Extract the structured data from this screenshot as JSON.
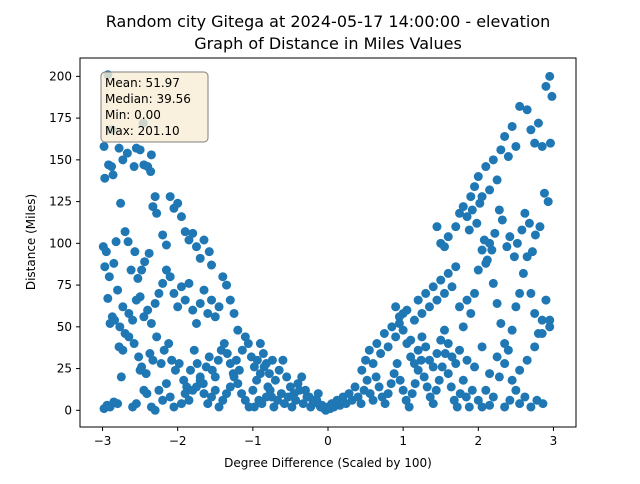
{
  "chart_data": {
    "type": "scatter",
    "title_line1": "Random city Gitega at 2024-05-17 14:00:00  - elevation",
    "title_line2": "Graph of Distance in Miles Values",
    "xlabel": "Degree Difference (Scaled by 100)",
    "ylabel": "Distance (Miles)",
    "xlim": [
      -3.3,
      3.3
    ],
    "ylim": [
      -10,
      211
    ],
    "x_ticks": [
      -3,
      -2,
      -1,
      0,
      1,
      2,
      3
    ],
    "x_tick_labels": [
      "−3",
      "−2",
      "−1",
      "0",
      "1",
      "2",
      "3"
    ],
    "y_ticks": [
      0,
      25,
      50,
      75,
      100,
      125,
      150,
      175,
      200
    ],
    "y_tick_labels": [
      "0",
      "25",
      "50",
      "75",
      "100",
      "125",
      "150",
      "175",
      "200"
    ],
    "grid": false,
    "point_color": "#1f77b4",
    "stats_box": {
      "mean": "Mean: 51.97",
      "median": "Median: 39.56",
      "min": "Min: 0.00",
      "max": "Max: 201.10",
      "background": "#f8ecd4",
      "border": "#7f7f7f"
    },
    "points": [
      [
        -2.93,
        201
      ],
      [
        -2.98,
        158
      ],
      [
        -2.97,
        139
      ],
      [
        -2.92,
        147
      ],
      [
        -2.88,
        146
      ],
      [
        -2.86,
        141
      ],
      [
        -2.78,
        157
      ],
      [
        -2.73,
        150
      ],
      [
        -2.67,
        154
      ],
      [
        -2.58,
        146
      ],
      [
        -2.55,
        157
      ],
      [
        -2.5,
        156
      ],
      [
        -2.45,
        147
      ],
      [
        -2.4,
        146
      ],
      [
        -2.35,
        153
      ],
      [
        -2.36,
        143
      ],
      [
        -2.46,
        172
      ],
      [
        -2.88,
        168
      ],
      [
        -2.99,
        98
      ],
      [
        -2.95,
        95
      ],
      [
        -2.91,
        80
      ],
      [
        -2.85,
        88
      ],
      [
        -2.82,
        101
      ],
      [
        -2.76,
        124
      ],
      [
        -2.7,
        107
      ],
      [
        -2.66,
        101
      ],
      [
        -2.62,
        84
      ],
      [
        -2.57,
        95
      ],
      [
        -2.53,
        79
      ],
      [
        -2.48,
        84
      ],
      [
        -2.44,
        89
      ],
      [
        -2.38,
        94
      ],
      [
        -2.33,
        122
      ],
      [
        -2.3,
        128
      ],
      [
        -2.28,
        118
      ],
      [
        -2.2,
        105
      ],
      [
        -2.15,
        99
      ],
      [
        -2.1,
        128
      ],
      [
        -2.05,
        121
      ],
      [
        -2.0,
        124
      ],
      [
        -1.95,
        116
      ],
      [
        -1.9,
        107
      ],
      [
        -1.85,
        102
      ],
      [
        -1.8,
        106
      ],
      [
        -1.75,
        98
      ],
      [
        -1.7,
        91
      ],
      [
        -1.65,
        102
      ],
      [
        -1.58,
        95
      ],
      [
        -1.55,
        87
      ],
      [
        -2.97,
        86
      ],
      [
        -2.93,
        67
      ],
      [
        -2.9,
        52
      ],
      [
        -2.87,
        56
      ],
      [
        -2.84,
        54
      ],
      [
        -2.8,
        72
      ],
      [
        -2.77,
        50
      ],
      [
        -2.73,
        62
      ],
      [
        -2.7,
        46
      ],
      [
        -2.65,
        58
      ],
      [
        -2.6,
        54
      ],
      [
        -2.55,
        66
      ],
      [
        -2.5,
        68
      ],
      [
        -2.45,
        56
      ],
      [
        -2.4,
        60
      ],
      [
        -2.35,
        52
      ],
      [
        -2.3,
        64
      ],
      [
        -2.25,
        70
      ],
      [
        -2.2,
        76
      ],
      [
        -2.15,
        84
      ],
      [
        -2.1,
        80
      ],
      [
        -2.05,
        70
      ],
      [
        -2.0,
        62
      ],
      [
        -1.95,
        74
      ],
      [
        -1.9,
        66
      ],
      [
        -1.85,
        76
      ],
      [
        -1.8,
        60
      ],
      [
        -1.75,
        52
      ],
      [
        -1.7,
        64
      ],
      [
        -1.65,
        72
      ],
      [
        -1.6,
        58
      ],
      [
        -1.55,
        66
      ],
      [
        -1.5,
        56
      ],
      [
        -1.45,
        62
      ],
      [
        -1.4,
        80
      ],
      [
        -1.35,
        75
      ],
      [
        -1.3,
        66
      ],
      [
        -1.25,
        58
      ],
      [
        -1.2,
        48
      ],
      [
        -2.78,
        38
      ],
      [
        -2.73,
        36
      ],
      [
        -2.65,
        44
      ],
      [
        -2.58,
        40
      ],
      [
        -2.52,
        32
      ],
      [
        -2.48,
        26
      ],
      [
        -2.42,
        22
      ],
      [
        -2.37,
        34
      ],
      [
        -2.33,
        30
      ],
      [
        -2.28,
        44
      ],
      [
        -2.22,
        28
      ],
      [
        -2.18,
        36
      ],
      [
        -2.12,
        40
      ],
      [
        -2.08,
        30
      ],
      [
        -2.03,
        24
      ],
      [
        -1.98,
        28
      ],
      [
        -1.92,
        18
      ],
      [
        -1.88,
        14
      ],
      [
        -1.83,
        24
      ],
      [
        -1.78,
        36
      ],
      [
        -1.74,
        28
      ],
      [
        -1.7,
        20
      ],
      [
        -1.66,
        16
      ],
      [
        -1.62,
        26
      ],
      [
        -1.58,
        32
      ],
      [
        -1.54,
        24
      ],
      [
        -1.5,
        20
      ],
      [
        -1.46,
        30
      ],
      [
        -1.42,
        36
      ],
      [
        -1.38,
        40
      ],
      [
        -1.34,
        34
      ],
      [
        -1.3,
        28
      ],
      [
        -1.26,
        22
      ],
      [
        -1.22,
        30
      ],
      [
        -1.18,
        24
      ],
      [
        -1.14,
        36
      ],
      [
        -1.1,
        44
      ],
      [
        -1.06,
        40
      ],
      [
        -1.02,
        32
      ],
      [
        -0.98,
        26
      ],
      [
        -0.94,
        30
      ],
      [
        -0.9,
        40
      ],
      [
        -0.86,
        34
      ],
      [
        -0.82,
        28
      ],
      [
        -0.78,
        22
      ],
      [
        -0.74,
        30
      ],
      [
        -2.98,
        1
      ],
      [
        -2.94,
        3
      ],
      [
        -2.9,
        2
      ],
      [
        -2.85,
        5
      ],
      [
        -2.8,
        4
      ],
      [
        -2.75,
        20
      ],
      [
        -2.6,
        2
      ],
      [
        -2.55,
        4
      ],
      [
        -2.5,
        24
      ],
      [
        -2.45,
        12
      ],
      [
        -2.41,
        10
      ],
      [
        -2.35,
        2
      ],
      [
        -2.3,
        0
      ],
      [
        -2.25,
        12
      ],
      [
        -2.2,
        6
      ],
      [
        -2.15,
        16
      ],
      [
        -2.1,
        8
      ],
      [
        -2.05,
        2
      ],
      [
        -1.95,
        4
      ],
      [
        -1.9,
        10
      ],
      [
        -1.85,
        6
      ],
      [
        -1.8,
        12
      ],
      [
        -1.75,
        14
      ],
      [
        -1.7,
        18
      ],
      [
        -1.65,
        10
      ],
      [
        -1.6,
        4
      ],
      [
        -1.55,
        8
      ],
      [
        -1.5,
        12
      ],
      [
        -1.45,
        2
      ],
      [
        -1.4,
        6
      ],
      [
        -1.35,
        10
      ],
      [
        -1.3,
        14
      ],
      [
        -1.25,
        20
      ],
      [
        -1.2,
        16
      ],
      [
        -1.15,
        10
      ],
      [
        -1.1,
        6
      ],
      [
        -1.05,
        2
      ],
      [
        -1.0,
        12
      ],
      [
        -0.95,
        18
      ],
      [
        -0.9,
        22
      ],
      [
        -0.85,
        26
      ],
      [
        -0.8,
        14
      ],
      [
        -0.75,
        8
      ],
      [
        -0.7,
        18
      ],
      [
        -0.65,
        24
      ],
      [
        -0.6,
        30
      ],
      [
        -0.55,
        20
      ],
      [
        -0.5,
        14
      ],
      [
        -0.45,
        10
      ],
      [
        -0.4,
        16
      ],
      [
        -0.35,
        20
      ],
      [
        -0.3,
        12
      ],
      [
        -0.25,
        8
      ],
      [
        -0.2,
        4
      ],
      [
        -0.15,
        6
      ],
      [
        -0.1,
        2
      ],
      [
        -0.05,
        1
      ],
      [
        -0.98,
        2
      ],
      [
        -0.92,
        6
      ],
      [
        -0.88,
        4
      ],
      [
        -0.82,
        8
      ],
      [
        -0.77,
        12
      ],
      [
        -0.72,
        2
      ],
      [
        -0.67,
        6
      ],
      [
        -0.62,
        10
      ],
      [
        -0.58,
        4
      ],
      [
        -0.53,
        8
      ],
      [
        -0.48,
        2
      ],
      [
        -0.43,
        6
      ],
      [
        -0.38,
        12
      ],
      [
        -0.33,
        4
      ],
      [
        -0.28,
        8
      ],
      [
        -0.23,
        2
      ],
      [
        -0.18,
        6
      ],
      [
        -0.13,
        10
      ],
      [
        -0.08,
        3
      ],
      [
        -0.03,
        0
      ],
      [
        0.0,
        2
      ],
      [
        0.03,
        1
      ],
      [
        0.05,
        4
      ],
      [
        0.08,
        2
      ],
      [
        0.12,
        6
      ],
      [
        0.16,
        3
      ],
      [
        0.2,
        8
      ],
      [
        0.24,
        4
      ],
      [
        0.28,
        10
      ],
      [
        0.32,
        6
      ],
      [
        0.36,
        14
      ],
      [
        0.4,
        8
      ],
      [
        0.44,
        4
      ],
      [
        0.48,
        12
      ],
      [
        0.52,
        18
      ],
      [
        0.56,
        10
      ],
      [
        0.6,
        6
      ],
      [
        0.64,
        20
      ],
      [
        0.68,
        14
      ],
      [
        0.72,
        8
      ],
      [
        0.76,
        4
      ],
      [
        0.8,
        10
      ],
      [
        0.84,
        16
      ],
      [
        0.88,
        22
      ],
      [
        0.92,
        28
      ],
      [
        0.96,
        18
      ],
      [
        1.0,
        12
      ],
      [
        1.04,
        6
      ],
      [
        1.08,
        2
      ],
      [
        1.12,
        10
      ],
      [
        1.16,
        16
      ],
      [
        1.2,
        24
      ],
      [
        1.24,
        30
      ],
      [
        1.28,
        20
      ],
      [
        1.32,
        14
      ],
      [
        1.36,
        8
      ],
      [
        1.4,
        4
      ],
      [
        1.44,
        12
      ],
      [
        1.48,
        18
      ],
      [
        1.52,
        26
      ],
      [
        1.56,
        34
      ],
      [
        1.6,
        22
      ],
      [
        1.64,
        14
      ],
      [
        1.68,
        6
      ],
      [
        1.72,
        2
      ],
      [
        1.76,
        10
      ],
      [
        1.8,
        18
      ],
      [
        1.84,
        8
      ],
      [
        1.88,
        2
      ],
      [
        1.92,
        12
      ],
      [
        2.0,
        6
      ],
      [
        2.05,
        2
      ],
      [
        2.1,
        12
      ],
      [
        2.15,
        3
      ],
      [
        2.2,
        8
      ],
      [
        2.28,
        20
      ],
      [
        2.35,
        2
      ],
      [
        2.42,
        6
      ],
      [
        2.5,
        12
      ],
      [
        2.55,
        4
      ],
      [
        2.62,
        8
      ],
      [
        2.7,
        2
      ],
      [
        2.78,
        6
      ],
      [
        2.86,
        4
      ],
      [
        0.45,
        24
      ],
      [
        0.5,
        30
      ],
      [
        0.55,
        36
      ],
      [
        0.6,
        28
      ],
      [
        0.65,
        40
      ],
      [
        0.7,
        34
      ],
      [
        0.75,
        46
      ],
      [
        0.8,
        38
      ],
      [
        0.85,
        50
      ],
      [
        0.9,
        44
      ],
      [
        0.95,
        56
      ],
      [
        1.0,
        48
      ],
      [
        1.05,
        60
      ],
      [
        1.1,
        42
      ],
      [
        1.15,
        54
      ],
      [
        1.2,
        66
      ],
      [
        1.25,
        58
      ],
      [
        1.3,
        70
      ],
      [
        1.35,
        62
      ],
      [
        1.4,
        74
      ],
      [
        1.45,
        66
      ],
      [
        1.5,
        78
      ],
      [
        1.55,
        70
      ],
      [
        1.6,
        82
      ],
      [
        1.65,
        74
      ],
      [
        1.7,
        86
      ],
      [
        1.75,
        62
      ],
      [
        1.8,
        50
      ],
      [
        1.85,
        66
      ],
      [
        1.9,
        58
      ],
      [
        1.95,
        70
      ],
      [
        2.0,
        84
      ],
      [
        2.05,
        96
      ],
      [
        2.1,
        88
      ],
      [
        2.15,
        100
      ],
      [
        2.2,
        76
      ],
      [
        2.25,
        64
      ],
      [
        2.3,
        52
      ],
      [
        2.35,
        40
      ],
      [
        2.4,
        36
      ],
      [
        2.45,
        48
      ],
      [
        2.5,
        62
      ],
      [
        2.55,
        70
      ],
      [
        2.6,
        82
      ],
      [
        2.65,
        92
      ],
      [
        2.7,
        70
      ],
      [
        2.75,
        58
      ],
      [
        2.8,
        46
      ],
      [
        2.85,
        54
      ],
      [
        2.9,
        66
      ],
      [
        2.95,
        50
      ],
      [
        0.9,
        62
      ],
      [
        0.95,
        52
      ],
      [
        1.0,
        58
      ],
      [
        1.05,
        40
      ],
      [
        1.1,
        32
      ],
      [
        1.15,
        28
      ],
      [
        1.2,
        36
      ],
      [
        1.25,
        44
      ],
      [
        1.3,
        38
      ],
      [
        1.35,
        30
      ],
      [
        1.4,
        26
      ],
      [
        1.45,
        34
      ],
      [
        1.5,
        42
      ],
      [
        1.55,
        48
      ],
      [
        1.6,
        40
      ],
      [
        1.65,
        32
      ],
      [
        1.7,
        28
      ],
      [
        1.75,
        36
      ],
      [
        1.85,
        30
      ],
      [
        1.95,
        26
      ],
      [
        2.05,
        38
      ],
      [
        2.15,
        22
      ],
      [
        2.25,
        32
      ],
      [
        2.35,
        28
      ],
      [
        2.45,
        18
      ],
      [
        2.55,
        24
      ],
      [
        2.65,
        30
      ],
      [
        2.75,
        38
      ],
      [
        2.85,
        46
      ],
      [
        2.95,
        54
      ],
      [
        1.45,
        110
      ],
      [
        1.5,
        100
      ],
      [
        1.55,
        98
      ],
      [
        1.6,
        104
      ],
      [
        1.7,
        110
      ],
      [
        1.75,
        118
      ],
      [
        1.8,
        122
      ],
      [
        1.85,
        116
      ],
      [
        1.9,
        128
      ],
      [
        1.95,
        134
      ],
      [
        2.0,
        140
      ],
      [
        2.05,
        128
      ],
      [
        2.1,
        146
      ],
      [
        2.15,
        132
      ],
      [
        2.2,
        150
      ],
      [
        2.25,
        138
      ],
      [
        2.3,
        156
      ],
      [
        2.35,
        164
      ],
      [
        2.4,
        152
      ],
      [
        2.45,
        170
      ],
      [
        2.5,
        158
      ],
      [
        2.55,
        182
      ],
      [
        2.65,
        180
      ],
      [
        2.7,
        168
      ],
      [
        2.75,
        160
      ],
      [
        2.8,
        172
      ],
      [
        2.85,
        158
      ],
      [
        2.9,
        194
      ],
      [
        2.95,
        200
      ],
      [
        2.98,
        188
      ],
      [
        2.96,
        160
      ],
      [
        2.93,
        125
      ],
      [
        2.88,
        130
      ],
      [
        2.82,
        110
      ],
      [
        2.76,
        105
      ],
      [
        2.72,
        95
      ],
      [
        2.68,
        112
      ],
      [
        2.62,
        118
      ],
      [
        2.58,
        108
      ],
      [
        2.52,
        100
      ],
      [
        2.48,
        92
      ],
      [
        2.42,
        104
      ],
      [
        2.38,
        98
      ],
      [
        2.32,
        114
      ],
      [
        2.28,
        120
      ],
      [
        2.22,
        106
      ],
      [
        2.18,
        96
      ],
      [
        2.12,
        90
      ],
      [
        2.08,
        102
      ],
      [
        2.02,
        124
      ],
      [
        1.98,
        112
      ],
      [
        1.92,
        120
      ],
      [
        1.88,
        108
      ]
    ]
  }
}
